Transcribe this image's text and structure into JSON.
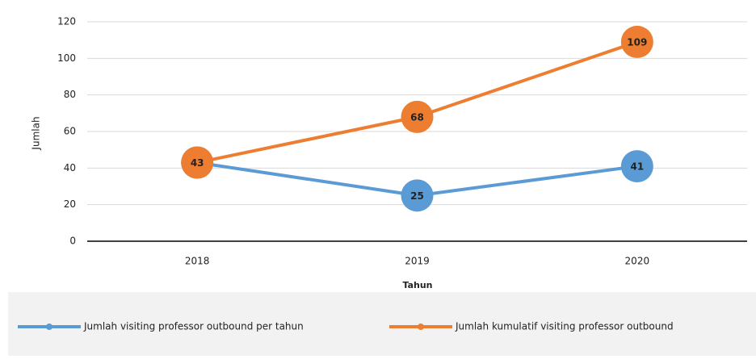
{
  "chart_data": {
    "type": "line",
    "categories": [
      "2018",
      "2019",
      "2020"
    ],
    "series": [
      {
        "name": "Jumlah visiting professor outbound per tahun",
        "color": "#5b9bd5",
        "values": [
          43,
          25,
          41
        ]
      },
      {
        "name": "Jumlah kumulatif  visiting professor outbound",
        "color": "#ed7d31",
        "values": [
          43,
          68,
          109
        ]
      }
    ],
    "ylim": [
      0,
      120
    ],
    "yticks": [
      0,
      20,
      40,
      60,
      80,
      100,
      120
    ],
    "grid": true,
    "xlabel": "Tahun",
    "ylabel": "Jumlah",
    "legend": "bottom"
  }
}
